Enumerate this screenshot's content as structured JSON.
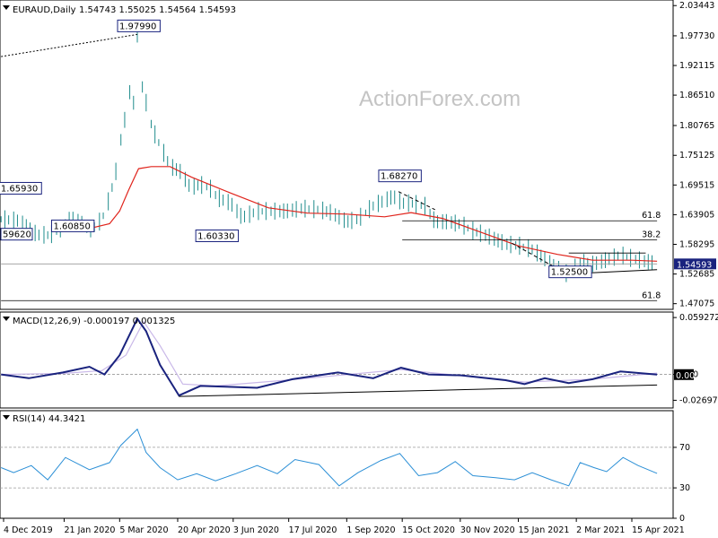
{
  "colors": {
    "candle": "#1f8c8c",
    "ma": "#e0241c",
    "macd_line": "#1a237e",
    "macd_signal": "#c9b8e8",
    "rsi": "#2b8fd6",
    "label_border": "#1a237e",
    "price_tag_bg": "#1a237e",
    "trend": "#000000"
  },
  "chart_data": [
    {
      "type": "line",
      "panel": "price",
      "instrument": "EURAUD,Daily",
      "ohlc_header": "1.54743 1.55025 1.54564 1.54593",
      "watermark": "ActionForex.com",
      "ylim": [
        1.46,
        2.045
      ],
      "y_ticks": [
        {
          "label": "2.03443",
          "value": 2.03443
        },
        {
          "label": "1.97730",
          "value": 1.9773
        },
        {
          "label": "1.92115",
          "value": 1.92115
        },
        {
          "label": "1.86510",
          "value": 1.8651
        },
        {
          "label": "1.80765",
          "value": 1.80765
        },
        {
          "label": "1.75125",
          "value": 1.75125
        },
        {
          "label": "1.69515",
          "value": 1.69515
        },
        {
          "label": "1.63905",
          "value": 1.63905
        },
        {
          "label": "1.58295",
          "value": 1.58295
        },
        {
          "label": "1.52685",
          "value": 1.52685
        },
        {
          "label": "1.47075",
          "value": 1.47075
        }
      ],
      "current_price": {
        "label": "1.54593",
        "value": 1.54593
      },
      "x_ticks": [
        {
          "label": "4 Dec 2019",
          "date": "2019-12-04"
        },
        {
          "label": "21 Jan 2020",
          "date": "2020-01-21"
        },
        {
          "label": "5 Mar 2020",
          "date": "2020-03-05"
        },
        {
          "label": "20 Apr 2020",
          "date": "2020-04-20"
        },
        {
          "label": "3 Jun 2020",
          "date": "2020-06-03"
        },
        {
          "label": "17 Jul 2020",
          "date": "2020-07-17"
        },
        {
          "label": "1 Sep 2020",
          "date": "2020-09-01"
        },
        {
          "label": "15 Oct 2020",
          "date": "2020-10-15"
        },
        {
          "label": "30 Nov 2020",
          "date": "2020-11-30"
        },
        {
          "label": "15 Jan 2021",
          "date": "2021-01-15"
        },
        {
          "label": "2 Mar 2021",
          "date": "2021-03-02"
        },
        {
          "label": "15 Apr 2021",
          "date": "2021-04-15"
        }
      ],
      "price_series": [
        [
          "2019-12-02",
          1.63
        ],
        [
          "2019-12-16",
          1.627
        ],
        [
          "2019-12-31",
          1.6
        ],
        [
          "2020-01-10",
          1.6
        ],
        [
          "2020-01-20",
          1.615
        ],
        [
          "2020-01-27",
          1.633
        ],
        [
          "2020-02-05",
          1.62
        ],
        [
          "2020-02-12",
          1.61
        ],
        [
          "2020-02-20",
          1.63
        ],
        [
          "2020-02-26",
          1.67
        ],
        [
          "2020-03-02",
          1.72
        ],
        [
          "2020-03-06",
          1.78
        ],
        [
          "2020-03-10",
          1.83
        ],
        [
          "2020-03-13",
          1.87
        ],
        [
          "2020-03-16",
          1.85
        ],
        [
          "2020-03-19",
          1.979
        ],
        [
          "2020-03-23",
          1.88
        ],
        [
          "2020-03-26",
          1.85
        ],
        [
          "2020-03-31",
          1.8
        ],
        [
          "2020-04-06",
          1.77
        ],
        [
          "2020-04-14",
          1.73
        ],
        [
          "2020-04-22",
          1.72
        ],
        [
          "2020-04-30",
          1.69
        ],
        [
          "2020-05-08",
          1.695
        ],
        [
          "2020-05-15",
          1.69
        ],
        [
          "2020-05-22",
          1.67
        ],
        [
          "2020-06-01",
          1.66
        ],
        [
          "2020-06-10",
          1.633
        ],
        [
          "2020-06-22",
          1.645
        ],
        [
          "2020-07-01",
          1.645
        ],
        [
          "2020-07-15",
          1.645
        ],
        [
          "2020-07-27",
          1.65
        ],
        [
          "2020-08-10",
          1.648
        ],
        [
          "2020-08-20",
          1.642
        ],
        [
          "2020-09-01",
          1.625
        ],
        [
          "2020-09-10",
          1.63
        ],
        [
          "2020-09-22",
          1.655
        ],
        [
          "2020-10-01",
          1.665
        ],
        [
          "2020-10-08",
          1.673
        ],
        [
          "2020-10-15",
          1.66
        ],
        [
          "2020-10-22",
          1.66
        ],
        [
          "2020-11-02",
          1.655
        ],
        [
          "2020-11-10",
          1.625
        ],
        [
          "2020-11-20",
          1.625
        ],
        [
          "2020-12-01",
          1.62
        ],
        [
          "2020-12-10",
          1.608
        ],
        [
          "2020-12-22",
          1.598
        ],
        [
          "2021-01-05",
          1.583
        ],
        [
          "2021-01-15",
          1.58
        ],
        [
          "2021-01-26",
          1.573
        ],
        [
          "2021-02-05",
          1.555
        ],
        [
          "2021-02-16",
          1.535
        ],
        [
          "2021-02-24",
          1.525
        ],
        [
          "2021-03-05",
          1.548
        ],
        [
          "2021-03-16",
          1.545
        ],
        [
          "2021-03-26",
          1.553
        ],
        [
          "2021-04-06",
          1.562
        ],
        [
          "2021-04-16",
          1.555
        ],
        [
          "2021-04-26",
          1.55
        ],
        [
          "2021-05-05",
          1.54593
        ]
      ],
      "ma_series": [
        [
          "2020-01-20",
          1.616
        ],
        [
          "2020-02-10",
          1.613
        ],
        [
          "2020-02-26",
          1.622
        ],
        [
          "2020-03-05",
          1.646
        ],
        [
          "2020-03-12",
          1.685
        ],
        [
          "2020-03-20",
          1.726
        ],
        [
          "2020-03-30",
          1.73
        ],
        [
          "2020-04-14",
          1.73
        ],
        [
          "2020-05-01",
          1.71
        ],
        [
          "2020-06-01",
          1.68
        ],
        [
          "2020-07-01",
          1.652
        ],
        [
          "2020-08-01",
          1.642
        ],
        [
          "2020-09-01",
          1.64
        ],
        [
          "2020-10-01",
          1.635
        ],
        [
          "2020-10-22",
          1.643
        ],
        [
          "2020-11-16",
          1.632
        ],
        [
          "2020-12-15",
          1.607
        ],
        [
          "2021-01-15",
          1.58
        ],
        [
          "2021-02-15",
          1.564
        ],
        [
          "2021-03-15",
          1.553
        ],
        [
          "2021-04-15",
          1.553
        ],
        [
          "2021-05-05",
          1.551
        ]
      ],
      "annotations": [
        {
          "label": "1.97990",
          "value": 1.9799,
          "date": "2020-03-19"
        },
        {
          "label": "1.65930",
          "value": 1.6593,
          "date": "2019-12-16"
        },
        {
          "label": "1.60850",
          "value": 1.6085,
          "date": "2020-01-21"
        },
        {
          "label": "59620",
          "value": 1.5962,
          "date": "2019-12-04"
        },
        {
          "label": "1.60330",
          "value": 1.6033,
          "date": "2020-05-20"
        },
        {
          "label": "1.68270",
          "value": 1.6827,
          "date": "2020-10-12"
        },
        {
          "label": "1.52500",
          "value": 1.525,
          "date": "2021-02-24"
        }
      ],
      "fib_levels": [
        {
          "label": "61.8",
          "value": 1.6275,
          "from": "2020-10-15",
          "to": "2021-05-05"
        },
        {
          "label": "38.2",
          "value": 1.5912,
          "from": "2020-10-15",
          "to": "2021-05-05"
        },
        {
          "label": "61.8",
          "value": 1.4765,
          "from": "2019-12-02",
          "to": "2021-05-05"
        }
      ],
      "horizontal_lines": [
        {
          "value": 1.5665,
          "from": "2021-02-24",
          "to": "2021-04-26"
        },
        {
          "value": 1.54593,
          "from": "2019-12-02",
          "to": "2021-05-05"
        }
      ],
      "trendlines": [
        {
          "style": "dotted",
          "points": [
            [
              "2019-12-02",
              1.938
            ],
            [
              "2020-03-19",
              1.9799
            ]
          ]
        },
        {
          "style": "dashed",
          "points": [
            [
              "2020-10-12",
              1.6827
            ],
            [
              "2020-11-10",
              1.6485
            ]
          ]
        },
        {
          "style": "dashed",
          "points": [
            [
              "2021-01-10",
              1.585
            ],
            [
              "2021-02-24",
              1.525
            ]
          ]
        },
        {
          "style": "solid",
          "points": [
            [
              "2021-02-24",
              1.527
            ],
            [
              "2021-05-05",
              1.535
            ]
          ]
        }
      ]
    },
    {
      "type": "line",
      "panel": "macd",
      "title": "MACD(12,26,9) -0.000197 0.001325",
      "ylim": [
        -0.035,
        0.065
      ],
      "y_ticks": [
        {
          "label": "0.059272",
          "value": 0.059272
        },
        {
          "label": "0.00",
          "value": 0.0
        },
        {
          "label": "-0.026978",
          "value": -0.026978
        }
      ],
      "current_macd": {
        "label": "0.00",
        "value": -0.000197
      },
      "macd_series": [
        [
          "2019-12-02",
          0.0
        ],
        [
          "2019-12-24",
          -0.004
        ],
        [
          "2020-01-20",
          0.002
        ],
        [
          "2020-02-10",
          0.008
        ],
        [
          "2020-02-22",
          0.0
        ],
        [
          "2020-03-05",
          0.02
        ],
        [
          "2020-03-19",
          0.058
        ],
        [
          "2020-03-26",
          0.045
        ],
        [
          "2020-04-06",
          0.01
        ],
        [
          "2020-04-21",
          -0.022
        ],
        [
          "2020-05-08",
          -0.012
        ],
        [
          "2020-06-02",
          -0.013
        ],
        [
          "2020-06-22",
          -0.014
        ],
        [
          "2020-07-20",
          -0.005
        ],
        [
          "2020-08-25",
          0.002
        ],
        [
          "2020-09-22",
          -0.004
        ],
        [
          "2020-10-14",
          0.007
        ],
        [
          "2020-11-05",
          0.0
        ],
        [
          "2020-12-01",
          -0.001
        ],
        [
          "2021-01-05",
          -0.006
        ],
        [
          "2021-01-20",
          -0.01
        ],
        [
          "2021-02-05",
          -0.004
        ],
        [
          "2021-02-24",
          -0.009
        ],
        [
          "2021-03-15",
          -0.005
        ],
        [
          "2021-04-06",
          0.003
        ],
        [
          "2021-05-05",
          -0.000197
        ]
      ],
      "signal_series": [
        [
          "2019-12-02",
          0.0
        ],
        [
          "2020-01-20",
          0.001
        ],
        [
          "2020-02-20",
          0.004
        ],
        [
          "2020-03-10",
          0.02
        ],
        [
          "2020-03-24",
          0.055
        ],
        [
          "2020-04-06",
          0.03
        ],
        [
          "2020-04-24",
          -0.01
        ],
        [
          "2020-05-20",
          -0.012
        ],
        [
          "2020-07-15",
          -0.006
        ],
        [
          "2020-10-14",
          0.005
        ],
        [
          "2021-01-20",
          -0.008
        ],
        [
          "2021-03-15",
          -0.005
        ],
        [
          "2021-05-05",
          0.001325
        ]
      ],
      "trendlines": [
        {
          "style": "solid",
          "points": [
            [
              "2020-04-21",
              -0.023
            ],
            [
              "2021-05-05",
              -0.011
            ]
          ]
        }
      ]
    },
    {
      "type": "line",
      "panel": "rsi",
      "title": "RSI(14) 44.3421",
      "ylim": [
        0,
        100
      ],
      "y_ticks": [
        {
          "label": "70",
          "value": 70
        },
        {
          "label": "30",
          "value": 30
        },
        {
          "label": "0",
          "value": 0
        }
      ],
      "levels": [
        70,
        30
      ],
      "rsi_series": [
        [
          "2019-12-02",
          50
        ],
        [
          "2019-12-12",
          45
        ],
        [
          "2019-12-26",
          52
        ],
        [
          "2020-01-08",
          38
        ],
        [
          "2020-01-22",
          60
        ],
        [
          "2020-02-10",
          48
        ],
        [
          "2020-02-26",
          55
        ],
        [
          "2020-03-06",
          72
        ],
        [
          "2020-03-19",
          88
        ],
        [
          "2020-03-26",
          65
        ],
        [
          "2020-04-06",
          50
        ],
        [
          "2020-04-20",
          38
        ],
        [
          "2020-05-05",
          44
        ],
        [
          "2020-05-20",
          37
        ],
        [
          "2020-06-05",
          44
        ],
        [
          "2020-06-22",
          52
        ],
        [
          "2020-07-08",
          44
        ],
        [
          "2020-07-22",
          58
        ],
        [
          "2020-08-10",
          53
        ],
        [
          "2020-08-26",
          32
        ],
        [
          "2020-09-10",
          45
        ],
        [
          "2020-09-28",
          57
        ],
        [
          "2020-10-13",
          64
        ],
        [
          "2020-10-28",
          42
        ],
        [
          "2020-11-12",
          45
        ],
        [
          "2020-11-26",
          56
        ],
        [
          "2020-12-10",
          42
        ],
        [
          "2020-12-28",
          40
        ],
        [
          "2021-01-12",
          38
        ],
        [
          "2021-01-26",
          45
        ],
        [
          "2021-02-10",
          38
        ],
        [
          "2021-02-24",
          32
        ],
        [
          "2021-03-05",
          55
        ],
        [
          "2021-03-16",
          50
        ],
        [
          "2021-03-26",
          46
        ],
        [
          "2021-04-08",
          60
        ],
        [
          "2021-04-20",
          52
        ],
        [
          "2021-05-05",
          44.3421
        ]
      ]
    }
  ]
}
